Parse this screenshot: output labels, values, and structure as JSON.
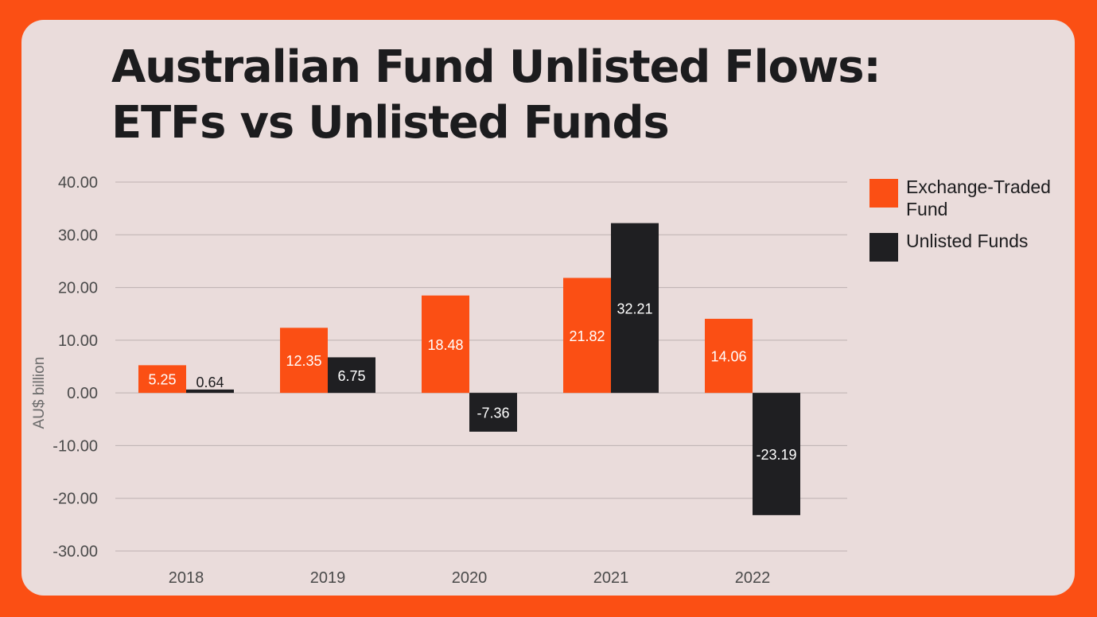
{
  "chart_data": {
    "type": "bar",
    "title_lines": [
      "Australian Fund Unlisted Flows:",
      "ETFs vs Unlisted Funds"
    ],
    "ylabel": "AU$ billion",
    "xlabel": "",
    "categories": [
      "2018",
      "2019",
      "2020",
      "2021",
      "2022"
    ],
    "ylim": [
      -30,
      40
    ],
    "yticks": [
      "40.00",
      "30.00",
      "20.00",
      "10.00",
      "0.00",
      "-10.00",
      "-20.00",
      "-30.00"
    ],
    "grid": true,
    "legend_position": "right",
    "series": [
      {
        "name": "Exchange-Traded Fund",
        "color": "#fb4f14",
        "values": [
          5.25,
          12.35,
          18.48,
          21.82,
          14.06
        ],
        "labels": [
          "5.25",
          "12.35",
          "18.48",
          "21.82",
          "14.06"
        ]
      },
      {
        "name": "Unlisted Funds",
        "color": "#1f1f22",
        "values": [
          0.64,
          6.75,
          -7.36,
          32.21,
          -23.19
        ],
        "labels": [
          "0.64",
          "6.75",
          "-7.36",
          "32.21",
          "-23.19"
        ]
      }
    ]
  },
  "legend": {
    "items": [
      {
        "label": "Exchange-Traded Fund",
        "color": "#fb4f14"
      },
      {
        "label": "Unlisted Funds",
        "color": "#1f1f22"
      }
    ]
  },
  "colors": {
    "background": "#fb4f14",
    "card": "#eadcdb",
    "gridline": "#bdb1b1",
    "text": "#1c1c1e",
    "axis_text": "#4a4a4a"
  }
}
